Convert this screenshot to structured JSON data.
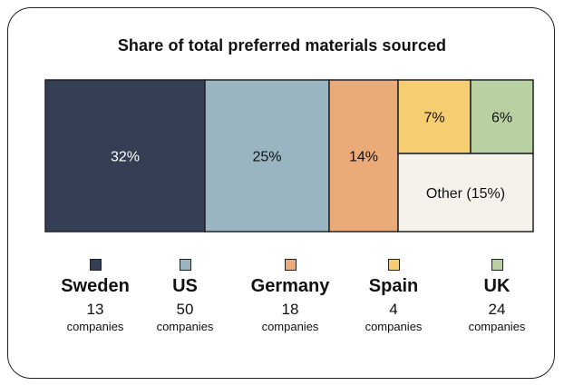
{
  "chart_data": {
    "type": "treemap",
    "title": "Share of total preferred materials sourced",
    "tiles": [
      {
        "id": "sweden",
        "label": "32%",
        "value": 32,
        "color": "#343e55",
        "label_color": "#ffffff"
      },
      {
        "id": "us",
        "label": "25%",
        "value": 25,
        "color": "#9ab5c2",
        "label_color": "#111111"
      },
      {
        "id": "germany",
        "label": "14%",
        "value": 14,
        "color": "#eaab79",
        "label_color": "#111111"
      },
      {
        "id": "spain",
        "label": "7%",
        "value": 7,
        "color": "#f6cd71",
        "label_color": "#111111"
      },
      {
        "id": "uk",
        "label": "6%",
        "value": 6,
        "color": "#b8d1a2",
        "label_color": "#111111"
      },
      {
        "id": "other",
        "label": "Other (15%)",
        "value": 15,
        "color": "#f4f2ea",
        "label_color": "#111111"
      }
    ],
    "legend": [
      {
        "country": "Sweden",
        "count": "13",
        "unit": "companies",
        "color": "#343e55"
      },
      {
        "country": "US",
        "count": "50",
        "unit": "companies",
        "color": "#9ab5c2"
      },
      {
        "country": "Germany",
        "count": "18",
        "unit": "companies",
        "color": "#eaab79"
      },
      {
        "country": "Spain",
        "count": "4",
        "unit": "companies",
        "color": "#f6cd71"
      },
      {
        "country": "UK",
        "count": "24",
        "unit": "companies",
        "color": "#b8d1a2"
      }
    ]
  }
}
